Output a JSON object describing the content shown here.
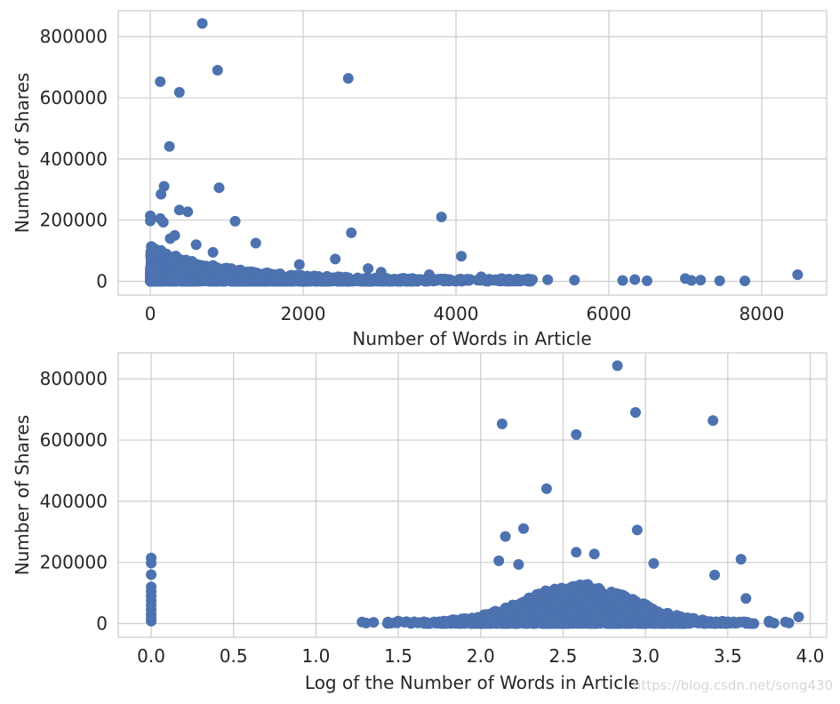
{
  "colors": {
    "point": "#4c72b0",
    "grid": "#cccccc",
    "text": "#262626"
  },
  "watermark": "https://blog.csdn.net/song430",
  "chart_data": [
    {
      "type": "scatter",
      "title": "",
      "xlabel": "Number of Words in Article",
      "ylabel": "Number of Shares",
      "xlim": [
        -420,
        8850
      ],
      "ylim": [
        -45000,
        885000
      ],
      "xticks": [
        0,
        2000,
        4000,
        6000,
        8000
      ],
      "xtick_labels": [
        "0",
        "2000",
        "4000",
        "6000",
        "8000"
      ],
      "yticks": [
        0,
        200000,
        400000,
        600000,
        800000
      ],
      "ytick_labels": [
        "0",
        "200000",
        "400000",
        "600000",
        "800000"
      ],
      "points": [
        [
          680,
          843300
        ],
        [
          130,
          652900
        ],
        [
          380,
          617900
        ],
        [
          880,
          690400
        ],
        [
          2590,
          663600
        ],
        [
          250,
          441000
        ],
        [
          180,
          310800
        ],
        [
          140,
          284700
        ],
        [
          900,
          306100
        ],
        [
          380,
          233100
        ],
        [
          490,
          227300
        ],
        [
          3810,
          210300
        ],
        [
          0,
          214400
        ],
        [
          0,
          197600
        ],
        [
          130,
          205300
        ],
        [
          170,
          193400
        ],
        [
          1110,
          196700
        ],
        [
          2630,
          158900
        ],
        [
          4070,
          82000
        ],
        [
          8470,
          22000
        ],
        [
          320,
          150000
        ],
        [
          600,
          120000
        ],
        [
          1380,
          125000
        ],
        [
          260,
          140000
        ],
        [
          820,
          95000
        ],
        [
          1950,
          55000
        ],
        [
          2420,
          73000
        ],
        [
          2850,
          42000
        ],
        [
          3020,
          30000
        ],
        [
          3650,
          22000
        ],
        [
          4330,
          15000
        ],
        [
          4600,
          9000
        ],
        [
          5000,
          6000
        ],
        [
          5550,
          4000
        ],
        [
          6180,
          3000
        ],
        [
          6340,
          6000
        ],
        [
          6500,
          2000
        ],
        [
          7000,
          9000
        ],
        [
          7080,
          3000
        ],
        [
          7200,
          4000
        ],
        [
          7450,
          2000
        ],
        [
          7780,
          1500
        ],
        [
          5200,
          5000
        ],
        [
          4800,
          3000
        ]
      ],
      "dense_cluster": {
        "x_range": [
          0,
          3500
        ],
        "y_range": [
          0,
          110000
        ],
        "decay": "y decreases as x grows"
      }
    },
    {
      "type": "scatter",
      "title": "",
      "xlabel": "Log of the Number of Words in Article",
      "ylabel": "Number of Shares",
      "xlim": [
        -0.2,
        4.1
      ],
      "ylim": [
        -45000,
        885000
      ],
      "xticks": [
        0.0,
        0.5,
        1.0,
        1.5,
        2.0,
        2.5,
        3.0,
        3.5,
        4.0
      ],
      "xtick_labels": [
        "0.0",
        "0.5",
        "1.0",
        "1.5",
        "2.0",
        "2.5",
        "3.0",
        "3.5",
        "4.0"
      ],
      "yticks": [
        0,
        200000,
        400000,
        600000,
        800000
      ],
      "ytick_labels": [
        "0",
        "200000",
        "400000",
        "600000",
        "800000"
      ],
      "points": [
        [
          2.83,
          843300
        ],
        [
          2.13,
          652900
        ],
        [
          2.58,
          617900
        ],
        [
          2.94,
          690400
        ],
        [
          3.41,
          663600
        ],
        [
          2.4,
          441000
        ],
        [
          2.26,
          310800
        ],
        [
          2.15,
          284700
        ],
        [
          2.95,
          306100
        ],
        [
          2.58,
          233100
        ],
        [
          2.69,
          227300
        ],
        [
          3.58,
          210300
        ],
        [
          0.0,
          214400
        ],
        [
          0.0,
          197600
        ],
        [
          2.11,
          205300
        ],
        [
          2.23,
          193400
        ],
        [
          3.05,
          196700
        ],
        [
          3.42,
          158900
        ],
        [
          3.61,
          82000
        ],
        [
          3.93,
          22000
        ],
        [
          0.0,
          160000
        ],
        [
          0.0,
          120000
        ],
        [
          0.0,
          105000
        ],
        [
          0.0,
          90000
        ],
        [
          0.0,
          75000
        ],
        [
          0.0,
          60000
        ],
        [
          0.0,
          45000
        ],
        [
          0.0,
          30000
        ],
        [
          0.0,
          18000
        ],
        [
          0.0,
          8000
        ],
        [
          1.28,
          5000
        ],
        [
          1.35,
          4000
        ],
        [
          1.5,
          8000
        ],
        [
          3.75,
          8000
        ],
        [
          3.85,
          5000
        ]
      ],
      "dense_cluster": {
        "x_range": [
          1.3,
          3.9
        ],
        "peak_x": 2.6,
        "y_max": 130000
      }
    }
  ]
}
